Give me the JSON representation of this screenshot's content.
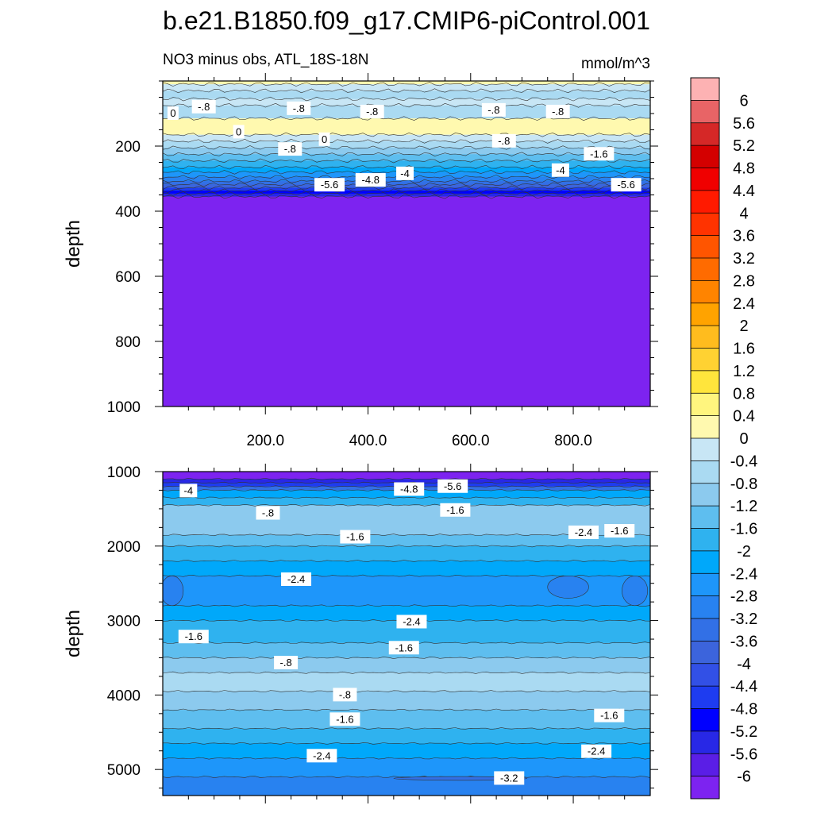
{
  "figure": {
    "title": "b.e21.B1850.f09_g17.CMIP6-piControl.001",
    "subtitle_left": "NO3 minus obs, ATL_18S-18N",
    "subtitle_right": "mmol/m^3"
  },
  "chart_data": [
    {
      "type": "heatmap",
      "panel": "upper",
      "ylabel": "depth",
      "ylim": [
        1000,
        0
      ],
      "yticks": [
        200,
        400,
        600,
        800,
        1000
      ],
      "yticklabels": [
        "200",
        "400",
        "600",
        "800",
        "1000"
      ],
      "xlim": [
        0,
        950
      ],
      "xticks": [
        200,
        400,
        600,
        800
      ],
      "xticklabels": [
        "200.0",
        "400.0",
        "600.0",
        "800.0"
      ],
      "layers": [
        {
          "top": 0,
          "bottom": 10,
          "level": 0.2
        },
        {
          "top": 10,
          "bottom": 30,
          "level": -0.2
        },
        {
          "top": 30,
          "bottom": 55,
          "level": -0.6
        },
        {
          "top": 55,
          "bottom": 75,
          "level": -0.2
        },
        {
          "top": 75,
          "bottom": 115,
          "level": -0.6
        },
        {
          "top": 115,
          "bottom": 165,
          "level": 0.2
        },
        {
          "top": 165,
          "bottom": 185,
          "level": -0.2
        },
        {
          "top": 185,
          "bottom": 205,
          "level": -0.6
        },
        {
          "top": 205,
          "bottom": 225,
          "level": -1.0
        },
        {
          "top": 225,
          "bottom": 245,
          "level": -1.4
        },
        {
          "top": 245,
          "bottom": 265,
          "level": -1.8
        },
        {
          "top": 265,
          "bottom": 280,
          "level": -2.2
        },
        {
          "top": 280,
          "bottom": 295,
          "level": -2.6
        },
        {
          "top": 295,
          "bottom": 308,
          "level": -3.0
        },
        {
          "top": 308,
          "bottom": 318,
          "level": -3.4
        },
        {
          "top": 318,
          "bottom": 328,
          "level": -3.8
        },
        {
          "top": 328,
          "bottom": 337,
          "level": -4.6
        },
        {
          "top": 337,
          "bottom": 346,
          "level": -5.0
        },
        {
          "top": 346,
          "bottom": 355,
          "level": -5.4
        },
        {
          "top": 355,
          "bottom": 1000,
          "level": -6.2
        }
      ],
      "contour_labels": [
        {
          "x": 20,
          "y": 100,
          "text": "0"
        },
        {
          "x": 80,
          "y": 80,
          "text": "-.8"
        },
        {
          "x": 148,
          "y": 157,
          "text": "0"
        },
        {
          "x": 265,
          "y": 85,
          "text": "-.8"
        },
        {
          "x": 248,
          "y": 210,
          "text": "-.8"
        },
        {
          "x": 315,
          "y": 180,
          "text": "0"
        },
        {
          "x": 408,
          "y": 95,
          "text": "-.8"
        },
        {
          "x": 325,
          "y": 320,
          "text": "-5.6"
        },
        {
          "x": 405,
          "y": 305,
          "text": "-4.8"
        },
        {
          "x": 472,
          "y": 285,
          "text": "-4"
        },
        {
          "x": 645,
          "y": 90,
          "text": "-.8"
        },
        {
          "x": 665,
          "y": 185,
          "text": "-.8"
        },
        {
          "x": 770,
          "y": 95,
          "text": "-.8"
        },
        {
          "x": 775,
          "y": 275,
          "text": "-4"
        },
        {
          "x": 850,
          "y": 225,
          "text": "-1.6"
        },
        {
          "x": 903,
          "y": 320,
          "text": "-5.6"
        }
      ]
    },
    {
      "type": "heatmap",
      "panel": "lower",
      "ylabel": "depth",
      "ylim": [
        5350,
        1000
      ],
      "yticks": [
        1000,
        2000,
        3000,
        4000,
        5000
      ],
      "yticklabels": [
        "1000",
        "2000",
        "3000",
        "4000",
        "5000"
      ],
      "xlim": [
        0,
        950
      ],
      "layers": [
        {
          "top": 1000,
          "bottom": 1100,
          "level": -6.2
        },
        {
          "top": 1100,
          "bottom": 1150,
          "level": -5.4
        },
        {
          "top": 1150,
          "bottom": 1200,
          "level": -4.6
        },
        {
          "top": 1200,
          "bottom": 1250,
          "level": -3.4
        },
        {
          "top": 1250,
          "bottom": 1350,
          "level": -2.2
        },
        {
          "top": 1350,
          "bottom": 1450,
          "level": -1.8
        },
        {
          "top": 1450,
          "bottom": 1850,
          "level": -1.0
        },
        {
          "top": 1850,
          "bottom": 2000,
          "level": -1.4
        },
        {
          "top": 2000,
          "bottom": 2200,
          "level": -1.8
        },
        {
          "top": 2200,
          "bottom": 2400,
          "level": -2.2
        },
        {
          "top": 2400,
          "bottom": 2800,
          "level": -2.6
        },
        {
          "top": 2800,
          "bottom": 3000,
          "level": -2.2
        },
        {
          "top": 3000,
          "bottom": 3300,
          "level": -1.8
        },
        {
          "top": 3300,
          "bottom": 3500,
          "level": -1.4
        },
        {
          "top": 3500,
          "bottom": 3700,
          "level": -1.0
        },
        {
          "top": 3700,
          "bottom": 3950,
          "level": -0.6
        },
        {
          "top": 3950,
          "bottom": 4200,
          "level": -1.0
        },
        {
          "top": 4200,
          "bottom": 4450,
          "level": -1.4
        },
        {
          "top": 4450,
          "bottom": 4650,
          "level": -1.8
        },
        {
          "top": 4650,
          "bottom": 4850,
          "level": -2.2
        },
        {
          "top": 4850,
          "bottom": 5100,
          "level": -2.6
        },
        {
          "top": 5100,
          "bottom": 5350,
          "level": -3.0
        }
      ],
      "blobs": [
        {
          "x": 18,
          "y": 2600,
          "rx": 22,
          "ry": 200,
          "level": -3.0
        },
        {
          "x": 790,
          "y": 2550,
          "rx": 40,
          "ry": 150,
          "level": -3.0
        },
        {
          "x": 920,
          "y": 2600,
          "rx": 25,
          "ry": 200,
          "level": -3.0
        },
        {
          "x": 580,
          "y": 5120,
          "rx": 130,
          "ry": 25,
          "level": -3.4
        }
      ],
      "contour_labels": [
        {
          "x": 50,
          "y": 1260,
          "text": "-4"
        },
        {
          "x": 480,
          "y": 1240,
          "text": "-4.8"
        },
        {
          "x": 565,
          "y": 1200,
          "text": "-5.6"
        },
        {
          "x": 570,
          "y": 1520,
          "text": "-1.6"
        },
        {
          "x": 205,
          "y": 1560,
          "text": "-.8"
        },
        {
          "x": 375,
          "y": 1880,
          "text": "-1.6"
        },
        {
          "x": 820,
          "y": 1820,
          "text": "-2.4"
        },
        {
          "x": 890,
          "y": 1800,
          "text": "-1.6"
        },
        {
          "x": 260,
          "y": 2450,
          "text": "-2.4"
        },
        {
          "x": 485,
          "y": 3020,
          "text": "-2.4"
        },
        {
          "x": 470,
          "y": 3370,
          "text": "-1.6"
        },
        {
          "x": 60,
          "y": 3220,
          "text": "-1.6"
        },
        {
          "x": 240,
          "y": 3570,
          "text": "-.8"
        },
        {
          "x": 355,
          "y": 4000,
          "text": "-.8"
        },
        {
          "x": 355,
          "y": 4330,
          "text": "-1.6"
        },
        {
          "x": 870,
          "y": 4280,
          "text": "-1.6"
        },
        {
          "x": 310,
          "y": 4820,
          "text": "-2.4"
        },
        {
          "x": 845,
          "y": 4760,
          "text": "-2.4"
        },
        {
          "x": 675,
          "y": 5120,
          "text": "-3.2"
        }
      ]
    }
  ],
  "colorbar": {
    "labels": [
      "6",
      "5.6",
      "5.2",
      "4.8",
      "4.4",
      "4",
      "3.6",
      "3.2",
      "2.8",
      "2.4",
      "2",
      "1.6",
      "1.2",
      "0.8",
      "0.4",
      "0",
      "-0.4",
      "-0.8",
      "-1.2",
      "-1.6",
      "-2",
      "-2.4",
      "-2.8",
      "-3.2",
      "-3.6",
      "-4",
      "-4.4",
      "-4.8",
      "-5.2",
      "-5.6",
      "-6"
    ],
    "colors": [
      "#FDB2B3",
      "#E86466",
      "#D52827",
      "#D40000",
      "#F00000",
      "#FF1A00",
      "#FF3300",
      "#FF5500",
      "#FF6B00",
      "#FF8400",
      "#FFA300",
      "#FFBC1E",
      "#FFD232",
      "#FFE53C",
      "#FFF57E",
      "#FFF9AF",
      "#C8E6F5",
      "#AADAF2",
      "#8CCAEE",
      "#5EBEEF",
      "#2FB2EF",
      "#00A8FA",
      "#1E96FA",
      "#2882F0",
      "#3270E6",
      "#3C64DC",
      "#3250E6",
      "#1E3CF0",
      "#0000FF",
      "#2828E6",
      "#5A1EE6",
      "#7D23F0"
    ]
  }
}
